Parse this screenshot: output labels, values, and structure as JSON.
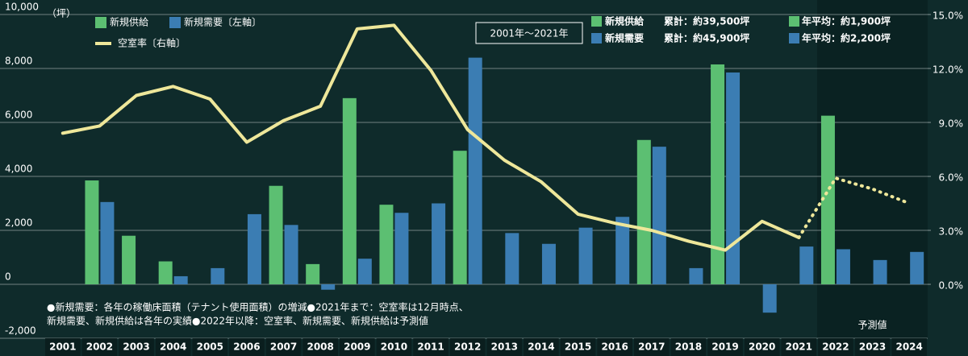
{
  "chart_data": {
    "type": "bar-line",
    "unit_label": "（坪）",
    "categories": [
      "2001",
      "2002",
      "2003",
      "2004",
      "2005",
      "2006",
      "2007",
      "2008",
      "2009",
      "2010",
      "2011",
      "2012",
      "2013",
      "2014",
      "2015",
      "2016",
      "2017",
      "2018",
      "2019",
      "2020",
      "2021",
      "2022",
      "2023",
      "2024"
    ],
    "series": [
      {
        "name": "新規供給",
        "type": "bar",
        "color": "#5cbf72",
        "values": [
          null,
          3850,
          1800,
          850,
          null,
          null,
          3650,
          750,
          6900,
          2950,
          null,
          4950,
          null,
          null,
          null,
          null,
          5350,
          null,
          8150,
          null,
          null,
          6250,
          null,
          null
        ]
      },
      {
        "name": "新規需要〔左軸〕",
        "type": "bar",
        "color": "#3b7db3",
        "values": [
          null,
          3050,
          null,
          300,
          600,
          2600,
          2200,
          -200,
          950,
          2650,
          3000,
          8400,
          1900,
          1500,
          2100,
          2500,
          5100,
          600,
          7850,
          -1050,
          1400,
          1300,
          900,
          1200
        ]
      },
      {
        "name": "空室率〔右軸〕",
        "type": "line",
        "axis": "y2",
        "color": "#eee79a",
        "values": [
          8.4,
          8.8,
          10.5,
          11.0,
          10.3,
          7.9,
          9.1,
          9.9,
          14.2,
          14.4,
          11.9,
          8.6,
          6.9,
          5.7,
          3.9,
          3.4,
          3.0,
          2.4,
          1.9,
          3.5,
          2.6,
          null,
          null,
          null
        ]
      },
      {
        "type": "line",
        "axis": "y2",
        "color": "#eee79a",
        "dotted": true,
        "values": [
          null,
          null,
          null,
          null,
          null,
          null,
          null,
          null,
          null,
          null,
          null,
          null,
          null,
          null,
          null,
          null,
          null,
          null,
          null,
          null,
          2.6,
          5.9,
          5.3,
          4.5
        ]
      }
    ],
    "ylim": [
      -2000,
      10000
    ],
    "yticks": [
      {
        "value": -2000,
        "label": "-2,000"
      },
      0,
      {
        "value": 2000,
        "label": "2,000"
      },
      {
        "value": 4000,
        "label": "4,000"
      },
      {
        "value": 6000,
        "label": "6,000"
      },
      {
        "value": 8000,
        "label": "8,000"
      },
      {
        "value": 10000,
        "label": "10,000"
      }
    ],
    "y2lim": [
      -3,
      15
    ],
    "y2ticks": [
      {
        "value": 0,
        "label": "0.0%"
      },
      {
        "value": 3,
        "label": "3.0%"
      },
      {
        "value": 6,
        "label": "6.0%"
      },
      {
        "value": 9,
        "label": "9.0%"
      },
      {
        "value": 12,
        "label": "12.0%"
      },
      {
        "value": 15,
        "label": "15.0%"
      }
    ],
    "grid": true,
    "period_box": "2001年～2021年",
    "summary": [
      {
        "name": "新規供給",
        "total": "累計：約39,500坪",
        "average": "年平均：約1,900坪"
      },
      {
        "name": "新規需要",
        "total": "累計：約45,900坪",
        "average": "年平均：約2,200坪"
      }
    ],
    "notes": [
      "●新規需要：各年の稼働床面積（テナント使用面積）の増減●2021年まで：空室率は12月時点、",
      "新規需要、新規供給は各年の実績●2022年以降：空室率、新規需要、新規供給は予測値"
    ],
    "forecast_label": "予測値"
  }
}
